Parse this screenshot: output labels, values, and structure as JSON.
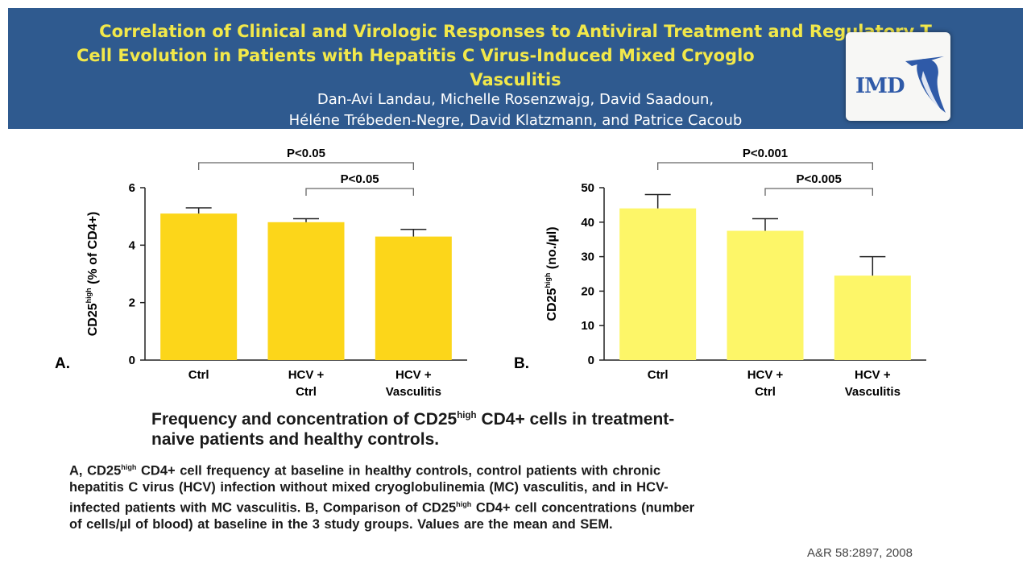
{
  "header": {
    "title_lines": [
      "Correlation of Clinical and Virologic Responses to Antiviral Treatment and Regulatory T",
      "Cell Evolution  in Patients with Hepatitis C Virus-Induced Mixed Cryoglo",
      "Vasculitis"
    ],
    "author_lines": [
      "Dan-Avi Landau, Michelle Rosenzwajg, David Saadoun,",
      "Héléne Trébeden-Negre,  David Klatzmann, and Patrice Cacoub"
    ],
    "logo_text": "IMD"
  },
  "chart_data": [
    {
      "type": "bar",
      "panel_label": "A.",
      "categories": [
        [
          "Ctrl"
        ],
        [
          "HCV +",
          "Ctrl"
        ],
        [
          "HCV +",
          "Vasculitis"
        ]
      ],
      "values": [
        5.1,
        4.8,
        4.3
      ],
      "errors": [
        0.2,
        0.12,
        0.25
      ],
      "ylabel_main": "CD25",
      "ylabel_sup": "high",
      "ylabel_rest": " (% of CD4+)",
      "ylim": [
        0,
        6
      ],
      "yticks": [
        0,
        2,
        4,
        6
      ],
      "bar_color": "#fcd61a",
      "significance": [
        {
          "from": 0,
          "to": 2,
          "label": "P<0.05"
        },
        {
          "from": 1,
          "to": 2,
          "label": "P<0.05"
        }
      ]
    },
    {
      "type": "bar",
      "panel_label": "B.",
      "categories": [
        [
          "Ctrl"
        ],
        [
          "HCV +",
          "Ctrl"
        ],
        [
          "HCV +",
          "Vasculitis"
        ]
      ],
      "values": [
        44,
        37.5,
        24.5
      ],
      "errors": [
        4,
        3.5,
        5.5
      ],
      "ylabel_main": "CD25",
      "ylabel_sup": "high",
      "ylabel_rest": " (no./µl)",
      "ylim": [
        0,
        50
      ],
      "yticks": [
        0,
        10,
        20,
        30,
        40,
        50
      ],
      "bar_color": "#fdf668",
      "significance": [
        {
          "from": 0,
          "to": 2,
          "label": "P<0.001"
        },
        {
          "from": 1,
          "to": 2,
          "label": "P<0.005"
        }
      ]
    }
  ],
  "caption": {
    "l1_pre": "Frequency and concentration of CD25",
    "sup": "high",
    "l1_post": " CD4+ cells in treatment-",
    "l2": "naive patients and healthy controls."
  },
  "legend": {
    "l1_pre": "A, CD25",
    "sup": "high",
    "l1_post": " CD4+ cell frequency  at baseline  in healthy  controls,  control patients  with chronic",
    "l2": "hepatitis  C virus  (HCV)  infection  without mixed  cryoglobulinemia  (MC)  vasculitis,  and in  HCV-",
    "l3_pre": "infected  patients  with MC vasculitis.   B, Comparison  of  CD25",
    "l3_post": " CD4+ cell concentrations  (number",
    "l4": "of cells/µl  of blood) at baseline  in the 3 study groups.  Values  are the mean  and SEM."
  },
  "citation": "A&R 58:2897, 2008"
}
